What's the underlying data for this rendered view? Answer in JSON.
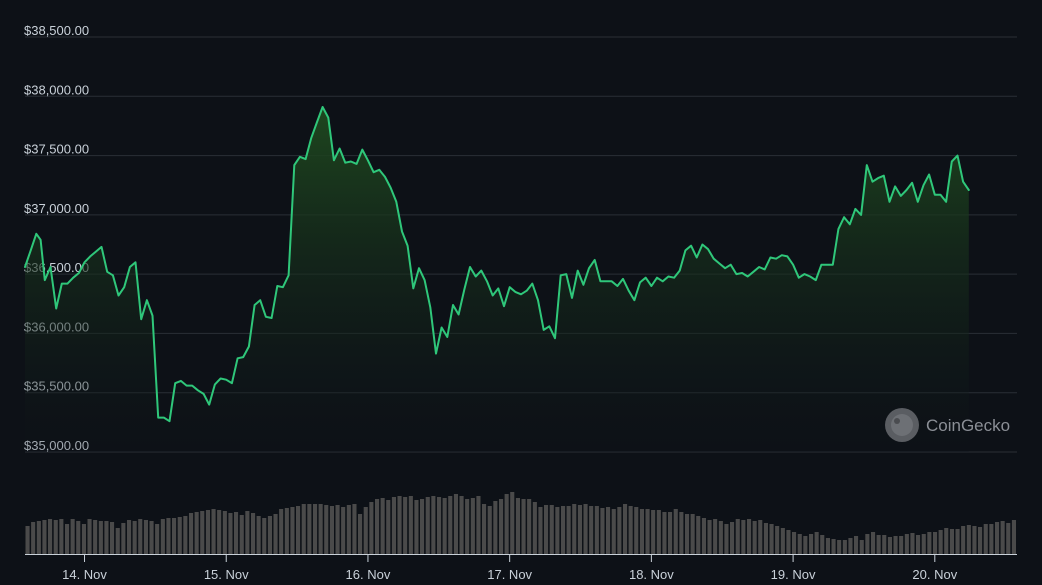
{
  "chart_data": {
    "type": "line",
    "y_ticks": [
      "$35,000.00",
      "$35,500.00",
      "$36,000.00",
      "$36,500.00",
      "$37,000.00",
      "$37,500.00",
      "$38,000.00",
      "$38,500.00"
    ],
    "y_tick_values": [
      35000,
      35500,
      36000,
      36500,
      37000,
      37500,
      38000,
      38500
    ],
    "ylim": [
      35000,
      38500
    ],
    "x_ticks": [
      "14. Nov",
      "15. Nov",
      "16. Nov",
      "17. Nov",
      "18. Nov",
      "19. Nov",
      "20. Nov"
    ],
    "x_tick_values": [
      14,
      15,
      16,
      17,
      18,
      19,
      20
    ],
    "xlim": [
      13.58,
      20.58
    ],
    "grid": true,
    "colors": {
      "line": "#2fc77a",
      "fill_top": "#1f4a1f",
      "grid": "#2a2f36",
      "volume": "#4a4a4a",
      "axis": "#c9d1d9"
    },
    "series": [
      {
        "price": [
          [
            13.58,
            36560
          ],
          [
            13.62,
            36700
          ],
          [
            13.66,
            36840
          ],
          [
            13.69,
            36790
          ],
          [
            13.72,
            36450
          ],
          [
            13.76,
            36560
          ],
          [
            13.8,
            36210
          ],
          [
            13.84,
            36420
          ],
          [
            13.88,
            36420
          ],
          [
            13.92,
            36470
          ],
          [
            13.96,
            36510
          ],
          [
            14.0,
            36600
          ],
          [
            14.04,
            36650
          ],
          [
            14.08,
            36690
          ],
          [
            14.12,
            36730
          ],
          [
            14.16,
            36520
          ],
          [
            14.2,
            36490
          ],
          [
            14.24,
            36320
          ],
          [
            14.28,
            36390
          ],
          [
            14.32,
            36560
          ],
          [
            14.36,
            36600
          ],
          [
            14.4,
            36120
          ],
          [
            14.44,
            36280
          ],
          [
            14.48,
            36150
          ],
          [
            14.52,
            35290
          ],
          [
            14.56,
            35290
          ],
          [
            14.6,
            35260
          ],
          [
            14.64,
            35580
          ],
          [
            14.68,
            35600
          ],
          [
            14.72,
            35560
          ],
          [
            14.76,
            35560
          ],
          [
            14.8,
            35520
          ],
          [
            14.84,
            35490
          ],
          [
            14.88,
            35400
          ],
          [
            14.92,
            35570
          ],
          [
            14.96,
            35620
          ],
          [
            15.0,
            35610
          ],
          [
            15.04,
            35580
          ],
          [
            15.08,
            35790
          ],
          [
            15.12,
            35800
          ],
          [
            15.16,
            35890
          ],
          [
            15.2,
            36240
          ],
          [
            15.24,
            36280
          ],
          [
            15.28,
            36140
          ],
          [
            15.32,
            36130
          ],
          [
            15.36,
            36400
          ],
          [
            15.4,
            36390
          ],
          [
            15.44,
            36490
          ],
          [
            15.48,
            37420
          ],
          [
            15.52,
            37490
          ],
          [
            15.56,
            37470
          ],
          [
            15.6,
            37650
          ],
          [
            15.64,
            37780
          ],
          [
            15.68,
            37910
          ],
          [
            15.72,
            37820
          ],
          [
            15.76,
            37460
          ],
          [
            15.8,
            37560
          ],
          [
            15.84,
            37440
          ],
          [
            15.88,
            37450
          ],
          [
            15.92,
            37430
          ],
          [
            15.96,
            37550
          ],
          [
            16.0,
            37460
          ],
          [
            16.04,
            37360
          ],
          [
            16.08,
            37380
          ],
          [
            16.12,
            37320
          ],
          [
            16.16,
            37230
          ],
          [
            16.2,
            37110
          ],
          [
            16.24,
            36860
          ],
          [
            16.28,
            36740
          ],
          [
            16.32,
            36380
          ],
          [
            16.36,
            36550
          ],
          [
            16.4,
            36450
          ],
          [
            16.44,
            36220
          ],
          [
            16.48,
            35830
          ],
          [
            16.52,
            36050
          ],
          [
            16.56,
            35970
          ],
          [
            16.6,
            36240
          ],
          [
            16.64,
            36160
          ],
          [
            16.68,
            36370
          ],
          [
            16.72,
            36560
          ],
          [
            16.76,
            36480
          ],
          [
            16.8,
            36530
          ],
          [
            16.84,
            36440
          ],
          [
            16.88,
            36320
          ],
          [
            16.92,
            36380
          ],
          [
            16.96,
            36230
          ],
          [
            17.0,
            36390
          ],
          [
            17.04,
            36350
          ],
          [
            17.08,
            36330
          ],
          [
            17.12,
            36360
          ],
          [
            17.16,
            36420
          ],
          [
            17.2,
            36280
          ],
          [
            17.24,
            36030
          ],
          [
            17.28,
            36060
          ],
          [
            17.32,
            35960
          ],
          [
            17.36,
            36490
          ],
          [
            17.4,
            36500
          ],
          [
            17.44,
            36300
          ],
          [
            17.48,
            36530
          ],
          [
            17.52,
            36410
          ],
          [
            17.56,
            36550
          ],
          [
            17.6,
            36620
          ],
          [
            17.64,
            36440
          ],
          [
            17.68,
            36440
          ],
          [
            17.72,
            36440
          ],
          [
            17.76,
            36400
          ],
          [
            17.8,
            36460
          ],
          [
            17.84,
            36360
          ],
          [
            17.88,
            36280
          ],
          [
            17.92,
            36430
          ],
          [
            17.96,
            36470
          ],
          [
            18.0,
            36400
          ],
          [
            18.04,
            36470
          ],
          [
            18.08,
            36440
          ],
          [
            18.12,
            36480
          ],
          [
            18.16,
            36470
          ],
          [
            18.2,
            36530
          ],
          [
            18.24,
            36700
          ],
          [
            18.28,
            36740
          ],
          [
            18.32,
            36640
          ],
          [
            18.36,
            36750
          ],
          [
            18.4,
            36710
          ],
          [
            18.44,
            36630
          ],
          [
            18.48,
            36590
          ],
          [
            18.52,
            36550
          ],
          [
            18.56,
            36580
          ],
          [
            18.6,
            36500
          ],
          [
            18.64,
            36510
          ],
          [
            18.68,
            36480
          ],
          [
            18.72,
            36520
          ],
          [
            18.76,
            36560
          ],
          [
            18.8,
            36540
          ],
          [
            18.84,
            36640
          ],
          [
            18.88,
            36630
          ],
          [
            18.92,
            36660
          ],
          [
            18.96,
            36650
          ],
          [
            19.0,
            36580
          ],
          [
            19.04,
            36470
          ],
          [
            19.08,
            36500
          ],
          [
            19.12,
            36480
          ],
          [
            19.16,
            36450
          ],
          [
            19.2,
            36580
          ],
          [
            19.24,
            36580
          ],
          [
            19.28,
            36580
          ],
          [
            19.32,
            36880
          ],
          [
            19.36,
            36980
          ],
          [
            19.4,
            36920
          ],
          [
            19.44,
            37050
          ],
          [
            19.48,
            37000
          ],
          [
            19.52,
            37420
          ],
          [
            19.56,
            37280
          ],
          [
            19.6,
            37310
          ],
          [
            19.64,
            37330
          ],
          [
            19.68,
            37110
          ],
          [
            19.72,
            37240
          ],
          [
            19.76,
            37160
          ],
          [
            19.8,
            37210
          ],
          [
            19.84,
            37270
          ],
          [
            19.88,
            37110
          ],
          [
            19.92,
            37250
          ],
          [
            19.96,
            37340
          ],
          [
            20.0,
            37170
          ],
          [
            20.04,
            37170
          ],
          [
            20.08,
            37110
          ],
          [
            20.12,
            37450
          ],
          [
            20.16,
            37500
          ],
          [
            20.2,
            37280
          ],
          [
            20.24,
            37210
          ]
        ],
        "volume": [
          28,
          32,
          33,
          34,
          35,
          34,
          35,
          30,
          35,
          33,
          30,
          35,
          34,
          33,
          33,
          32,
          26,
          31,
          34,
          33,
          35,
          34,
          33,
          30,
          35,
          36,
          36,
          37,
          38,
          41,
          42,
          43,
          44,
          45,
          44,
          43,
          41,
          42,
          39,
          43,
          41,
          38,
          36,
          38,
          40,
          45,
          46,
          47,
          48,
          50,
          50,
          50,
          50,
          49,
          48,
          49,
          47,
          49,
          50,
          40,
          47,
          52,
          55,
          56,
          54,
          57,
          58,
          57,
          58,
          54,
          55,
          57,
          58,
          57,
          56,
          58,
          60,
          58,
          55,
          56,
          58,
          50,
          48,
          53,
          55,
          60,
          62,
          56,
          55,
          55,
          52,
          47,
          49,
          49,
          47,
          48,
          48,
          50,
          49,
          50,
          48,
          48,
          46,
          47,
          45,
          47,
          50,
          48,
          47,
          45,
          45,
          44,
          44,
          42,
          42,
          45,
          42,
          40,
          40,
          38,
          36,
          34,
          35,
          33,
          30,
          32,
          35,
          34,
          35,
          33,
          34,
          31,
          30,
          28,
          26,
          24,
          22,
          20,
          18,
          20,
          22,
          19,
          16,
          15,
          14,
          14,
          16,
          18,
          14,
          20,
          22,
          19,
          19,
          17,
          18,
          18,
          20,
          21,
          19,
          20,
          22,
          22,
          24,
          26,
          25,
          25,
          28,
          29,
          28,
          27,
          30,
          30,
          32,
          33,
          31,
          34
        ]
      }
    ]
  },
  "watermark": {
    "text": "CoinGecko",
    "icon": "coingecko-logo-icon"
  }
}
